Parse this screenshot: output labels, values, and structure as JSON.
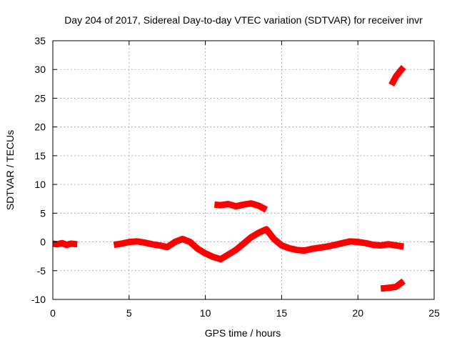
{
  "chart_data": {
    "type": "scatter",
    "title": "Day 204 of 2017, Sidereal Day-to-day VTEC variation (SDTVAR) for receiver invr",
    "xlabel": "GPS time / hours",
    "ylabel": "SDTVAR / TECUs",
    "xlim": [
      0,
      25
    ],
    "ylim": [
      -10,
      35
    ],
    "xticks": [
      "0",
      "5",
      "10",
      "15",
      "20",
      "25"
    ],
    "yticks": [
      "-10",
      "-5",
      "0",
      "5",
      "10",
      "15",
      "20",
      "25",
      "30",
      "35"
    ],
    "grid": true,
    "series_color": "#ff0000",
    "series": [
      {
        "name": "segment-1",
        "x": [
          0.0,
          0.3,
          0.6,
          0.9,
          1.2,
          1.6
        ],
        "y": [
          -0.3,
          -0.4,
          -0.2,
          -0.5,
          -0.3,
          -0.4
        ]
      },
      {
        "name": "segment-2",
        "x": [
          4.0,
          4.5,
          5.0,
          5.5,
          6.0,
          6.5,
          7.0,
          7.5,
          8.0,
          8.5,
          9.0,
          9.5,
          10.0,
          10.5,
          11.0,
          11.5,
          12.0,
          12.5,
          13.0,
          13.5,
          14.0,
          14.5,
          15.0,
          15.5,
          16.0,
          16.5,
          17.0,
          17.5,
          18.0,
          18.5,
          19.0,
          19.5,
          20.0,
          20.5,
          21.0,
          21.5,
          22.0,
          22.5,
          23.0
        ],
        "y": [
          -0.5,
          -0.3,
          0.0,
          0.1,
          -0.1,
          -0.4,
          -0.6,
          -0.9,
          0.0,
          0.5,
          0.0,
          -1.2,
          -2.0,
          -2.6,
          -3.0,
          -2.2,
          -1.4,
          -0.3,
          0.8,
          1.6,
          2.2,
          0.5,
          -0.6,
          -1.1,
          -1.4,
          -1.5,
          -1.2,
          -1.0,
          -0.8,
          -0.5,
          -0.2,
          0.1,
          0.0,
          -0.2,
          -0.5,
          -0.6,
          -0.4,
          -0.6,
          -0.8
        ]
      },
      {
        "name": "segment-3",
        "x": [
          10.6,
          11.0,
          11.5,
          12.0,
          12.5,
          13.0,
          13.5,
          14.0
        ],
        "y": [
          6.5,
          6.4,
          6.6,
          6.2,
          6.5,
          6.7,
          6.3,
          5.6
        ]
      },
      {
        "name": "segment-4",
        "x": [
          22.2,
          22.5,
          22.8,
          23.0
        ],
        "y": [
          27.3,
          28.8,
          29.8,
          30.4
        ]
      },
      {
        "name": "segment-5",
        "x": [
          21.5,
          22.0,
          22.5,
          23.0
        ],
        "y": [
          -8.1,
          -8.0,
          -7.8,
          -6.8
        ]
      }
    ]
  }
}
